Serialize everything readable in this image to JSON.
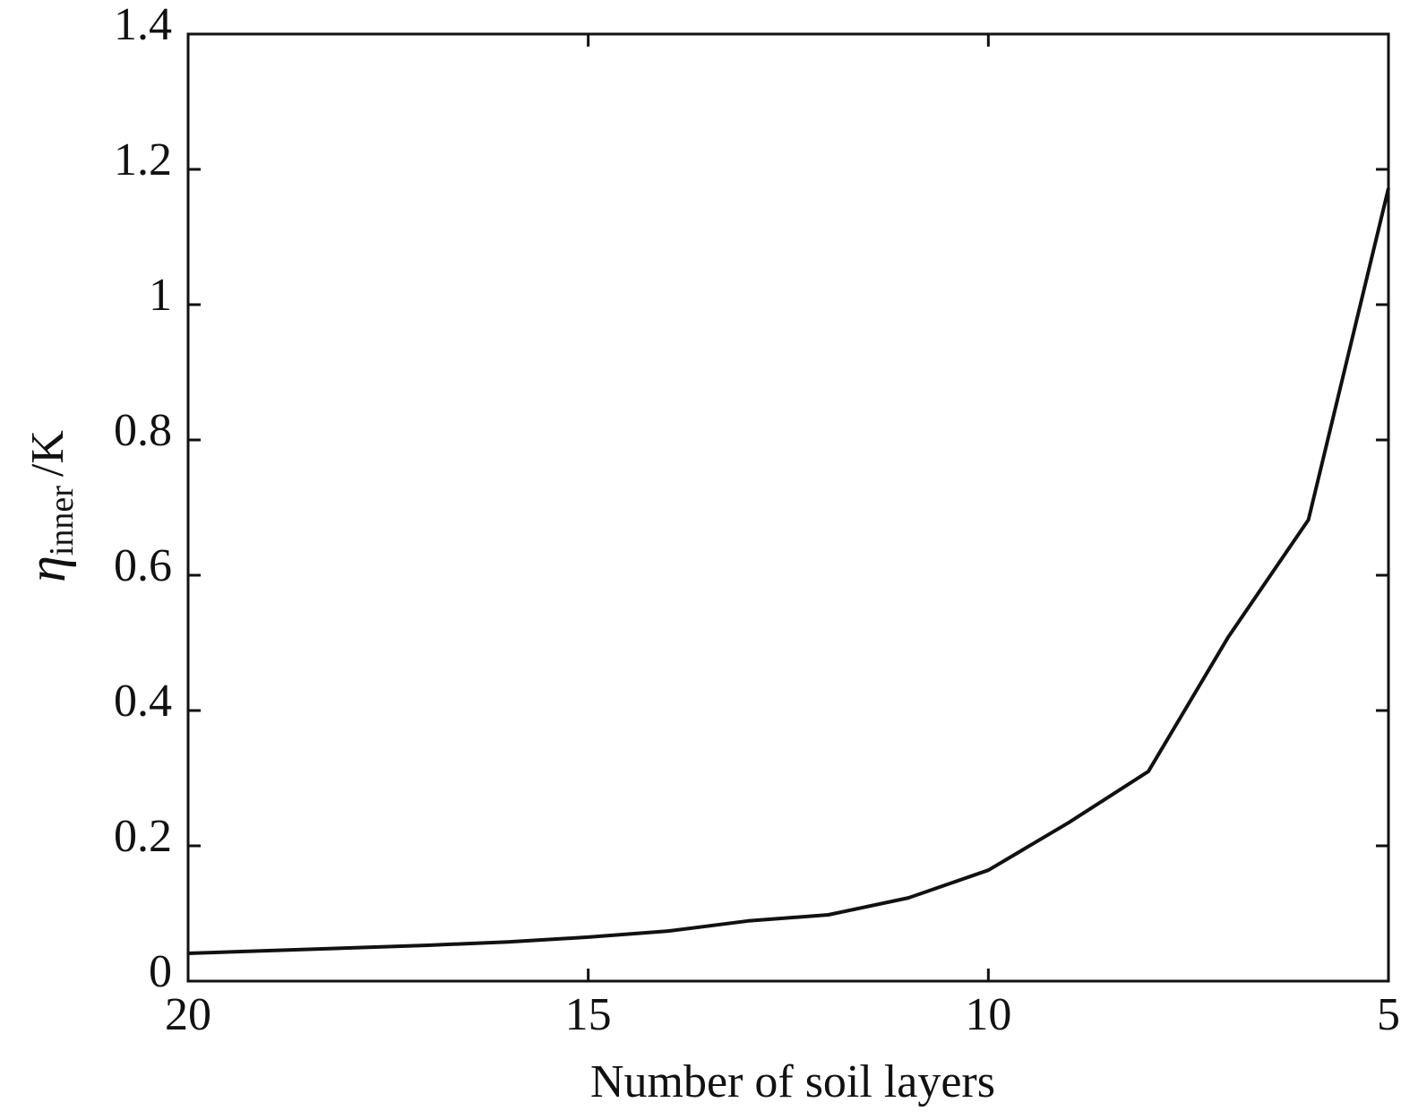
{
  "chart_data": {
    "type": "line",
    "x_label": "Number of soil layers",
    "y_label": {
      "symbol": "η",
      "subscript": "inner",
      "unit": "/K"
    },
    "x": [
      20,
      19,
      18,
      17,
      16,
      15,
      14,
      13,
      12,
      11,
      10,
      9,
      8,
      7,
      6,
      5
    ],
    "series": [
      {
        "color": "#111111",
        "values": [
          0.041,
          0.045,
          0.049,
          0.053,
          0.058,
          0.065,
          0.074,
          0.089,
          0.098,
          0.123,
          0.164,
          0.234,
          0.31,
          0.509,
          0.682,
          1.172
        ]
      }
    ],
    "xlim": [
      20,
      5
    ],
    "xticks": [
      20,
      15,
      10,
      5
    ],
    "ylim": [
      0,
      1.4
    ],
    "yticks": [
      0,
      0.2,
      0.4,
      0.6,
      0.8,
      1,
      1.2,
      1.4
    ]
  }
}
